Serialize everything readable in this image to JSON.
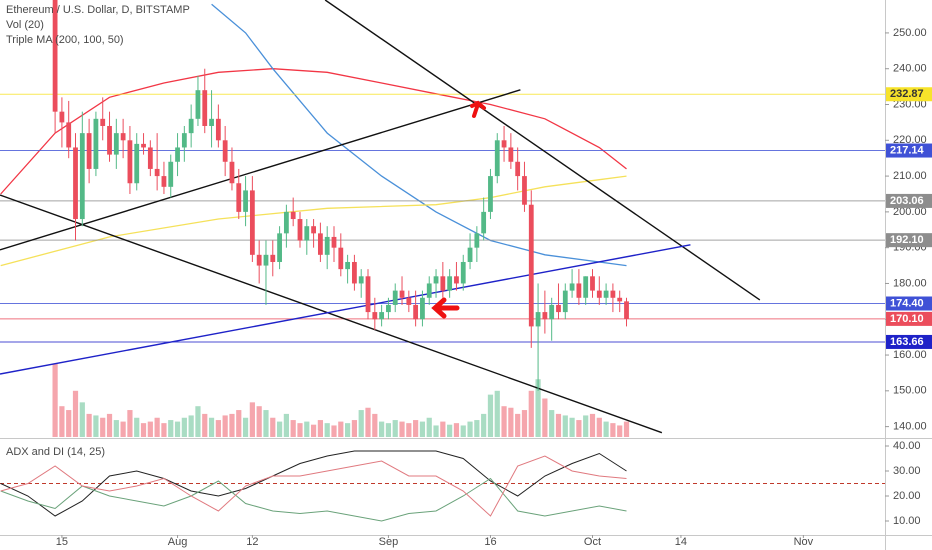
{
  "chart_data": {
    "type": "candlestick",
    "title": "Ethereum / U.S. Dollar, D, BITSTAMP",
    "indicator_labels": [
      "Vol (20)",
      "Triple MA (200, 100, 50)"
    ],
    "up_color": "#53b987",
    "down_color": "#eb4d5c",
    "grid": false,
    "xlim": [
      -8.1,
      122
    ],
    "xticks": [
      {
        "value": 1,
        "label": "15"
      },
      {
        "value": 18,
        "label": "Aug"
      },
      {
        "value": 29,
        "label": "12"
      },
      {
        "value": 49,
        "label": "Sep"
      },
      {
        "value": 64,
        "label": "16"
      },
      {
        "value": 79,
        "label": "Oct"
      },
      {
        "value": 92,
        "label": "14"
      },
      {
        "value": 110,
        "label": "Nov"
      }
    ],
    "ylim": [
      137.1,
      259.2
    ],
    "yticks": [
      {
        "value": 250,
        "label": "250.00"
      },
      {
        "value": 240,
        "label": "240.00"
      },
      {
        "value": 230,
        "label": "230.00"
      },
      {
        "value": 220,
        "label": "220.00"
      },
      {
        "value": 210,
        "label": "210.00"
      },
      {
        "value": 200,
        "label": "200.00"
      },
      {
        "value": 190,
        "label": "190.00"
      },
      {
        "value": 180,
        "label": "180.00"
      },
      {
        "value": 170,
        "label": "170.00"
      },
      {
        "value": 160,
        "label": "160.00"
      },
      {
        "value": 150,
        "label": "150.00"
      },
      {
        "value": 140,
        "label": "140.00"
      }
    ],
    "ohlc": [
      [
        265,
        268,
        222,
        228
      ],
      [
        228,
        232,
        218,
        225
      ],
      [
        225,
        231,
        215,
        218
      ],
      [
        218,
        222,
        192,
        198
      ],
      [
        198,
        228,
        196,
        222
      ],
      [
        222,
        226,
        208,
        212
      ],
      [
        212,
        228,
        210,
        226
      ],
      [
        226,
        232,
        220,
        224
      ],
      [
        224,
        228,
        214,
        216
      ],
      [
        216,
        226,
        212,
        222
      ],
      [
        222,
        226,
        215,
        220
      ],
      [
        220,
        224,
        205,
        208
      ],
      [
        208,
        222,
        206,
        219
      ],
      [
        219,
        222,
        216,
        218
      ],
      [
        218,
        220,
        210,
        212
      ],
      [
        212,
        222,
        206,
        210
      ],
      [
        210,
        214,
        205,
        207
      ],
      [
        207,
        216,
        204,
        214
      ],
      [
        214,
        222,
        210,
        218
      ],
      [
        218,
        224,
        214,
        222
      ],
      [
        222,
        230,
        218,
        226
      ],
      [
        226,
        238,
        224,
        234
      ],
      [
        234,
        240,
        222,
        224
      ],
      [
        224,
        234,
        218,
        226
      ],
      [
        226,
        230,
        218,
        220
      ],
      [
        220,
        224,
        210,
        214
      ],
      [
        214,
        218,
        206,
        208
      ],
      [
        208,
        212,
        198,
        200
      ],
      [
        200,
        210,
        196,
        206
      ],
      [
        206,
        210,
        186,
        188
      ],
      [
        188,
        192,
        180,
        185
      ],
      [
        185,
        192,
        174,
        188
      ],
      [
        188,
        192,
        182,
        186
      ],
      [
        186,
        196,
        184,
        194
      ],
      [
        194,
        202,
        190,
        200
      ],
      [
        200,
        204,
        196,
        198
      ],
      [
        198,
        200,
        190,
        192
      ],
      [
        192,
        198,
        188,
        196
      ],
      [
        196,
        198,
        190,
        194
      ],
      [
        194,
        197,
        186,
        188
      ],
      [
        188,
        196,
        184,
        193
      ],
      [
        193,
        196,
        186,
        190
      ],
      [
        190,
        194,
        182,
        184
      ],
      [
        184,
        188,
        180,
        186
      ],
      [
        186,
        188,
        178,
        180
      ],
      [
        180,
        184,
        176,
        182
      ],
      [
        182,
        184,
        170,
        172
      ],
      [
        172,
        176,
        167,
        170
      ],
      [
        170,
        174,
        168,
        172
      ],
      [
        172,
        176,
        170,
        174
      ],
      [
        174,
        180,
        172,
        178
      ],
      [
        178,
        182,
        174,
        176
      ],
      [
        176,
        178,
        172,
        174
      ],
      [
        174,
        178,
        168,
        170
      ],
      [
        170,
        178,
        168,
        176
      ],
      [
        176,
        182,
        174,
        180
      ],
      [
        180,
        184,
        176,
        182
      ],
      [
        182,
        186,
        176,
        178
      ],
      [
        178,
        184,
        176,
        182
      ],
      [
        182,
        186,
        178,
        180
      ],
      [
        180,
        188,
        178,
        186
      ],
      [
        186,
        194,
        184,
        190
      ],
      [
        190,
        196,
        186,
        194
      ],
      [
        194,
        204,
        192,
        200
      ],
      [
        200,
        212,
        198,
        210
      ],
      [
        210,
        222,
        208,
        220
      ],
      [
        220,
        224,
        214,
        218
      ],
      [
        218,
        222,
        212,
        214
      ],
      [
        214,
        218,
        206,
        210
      ],
      [
        210,
        214,
        200,
        202
      ],
      [
        202,
        206,
        162,
        168
      ],
      [
        168,
        180,
        150,
        172
      ],
      [
        172,
        178,
        166,
        170
      ],
      [
        170,
        176,
        164,
        174
      ],
      [
        174,
        180,
        170,
        172
      ],
      [
        172,
        180,
        170,
        178
      ],
      [
        178,
        184,
        176,
        180
      ],
      [
        180,
        184,
        174,
        176
      ],
      [
        176,
        182,
        174,
        182
      ],
      [
        182,
        184,
        176,
        178
      ],
      [
        178,
        182,
        174,
        176
      ],
      [
        176,
        180,
        174,
        178
      ],
      [
        178,
        180,
        172,
        176
      ],
      [
        176,
        178,
        172,
        175
      ],
      [
        175,
        176,
        168,
        170.1
      ]
    ],
    "volume": {
      "ylim": [
        0,
        100
      ],
      "values": [
        95,
        40,
        35,
        60,
        45,
        30,
        28,
        25,
        30,
        22,
        20,
        35,
        25,
        18,
        20,
        25,
        18,
        22,
        20,
        25,
        28,
        40,
        30,
        25,
        22,
        28,
        30,
        35,
        25,
        45,
        40,
        35,
        25,
        20,
        30,
        22,
        18,
        20,
        16,
        22,
        18,
        15,
        20,
        18,
        22,
        35,
        38,
        30,
        20,
        18,
        22,
        20,
        18,
        22,
        20,
        25,
        15,
        20,
        16,
        18,
        15,
        20,
        22,
        30,
        55,
        60,
        40,
        38,
        30,
        35,
        60,
        75,
        50,
        35,
        30,
        28,
        25,
        22,
        28,
        30,
        25,
        20,
        18,
        15,
        20
      ]
    },
    "moving_averages": [
      {
        "color": "#f23645",
        "x": [
          -8,
          0,
          8,
          16,
          24,
          32,
          40,
          48,
          56,
          64,
          72,
          80,
          84
        ],
        "values": [
          205,
          222,
          232,
          236,
          239,
          240,
          239,
          236,
          233,
          230,
          226,
          218,
          212
        ]
      },
      {
        "color": "#4a90d9",
        "x": [
          23,
          28,
          32,
          40,
          48,
          56,
          64,
          72,
          80,
          84
        ],
        "values": [
          258,
          250,
          240,
          222,
          210,
          200,
          192,
          188,
          186,
          185
        ]
      },
      {
        "color": "#f5e15a",
        "x": [
          -8,
          8,
          24,
          40,
          56,
          64,
          72,
          80,
          84
        ],
        "values": [
          185,
          193,
          198,
          201,
          202,
          204,
          207,
          209,
          210
        ]
      }
    ],
    "trendlines": [
      {
        "color": "#111111",
        "points": [
          [
            39.7,
            259.2
          ],
          [
            103.6,
            175.4
          ]
        ]
      },
      {
        "color": "#111111",
        "points": [
          [
            -8.1,
            204.7
          ],
          [
            89.2,
            138.3
          ]
        ]
      },
      {
        "color": "#111111",
        "points": [
          [
            -8.1,
            189.4
          ],
          [
            68.4,
            234.1
          ]
        ]
      },
      {
        "color": "#1e22c8",
        "points": [
          [
            -8.1,
            154.7
          ],
          [
            93.4,
            190.8
          ]
        ]
      }
    ],
    "price_lines": [
      {
        "value": 232.87,
        "color": "#f7e32a",
        "text_color": "#333333"
      },
      {
        "value": 217.14,
        "color": "#3f51d6",
        "text_color": "#ffffff"
      },
      {
        "value": 203.06,
        "color": "#8d8d8d",
        "text_color": "#ffffff"
      },
      {
        "value": 192.1,
        "label": "192.10",
        "color": "#8d8d8d",
        "text_color": "#ffffff"
      },
      {
        "value": 174.4,
        "label": "174.40",
        "color": "#3f51d6",
        "text_color": "#ffffff"
      },
      {
        "value": 170.1,
        "label": "170.10",
        "color": "#eb4d5c",
        "text_color": "#ffffff"
      },
      {
        "value": 163.66,
        "color": "#1e22c8",
        "text_color": "#ffffff"
      }
    ],
    "adx": {
      "title": "ADX and DI (14, 25)",
      "ylim": [
        4.4,
        42.4
      ],
      "yticks": [
        {
          "value": 40,
          "label": "40.00"
        },
        {
          "value": 30,
          "label": "30.00"
        },
        {
          "value": 20,
          "label": "20.00"
        },
        {
          "value": 10,
          "label": "10.00"
        }
      ],
      "level": 25,
      "x": [
        -8,
        -4,
        0,
        4,
        8,
        12,
        16,
        20,
        24,
        28,
        32,
        36,
        40,
        44,
        48,
        52,
        56,
        60,
        64,
        68,
        72,
        76,
        80,
        84
      ],
      "series": [
        {
          "color": "#222222",
          "values": [
            25,
            20,
            12,
            18,
            28,
            30,
            27,
            22,
            20,
            23,
            28,
            33,
            36,
            38,
            38,
            38,
            38,
            35,
            26,
            20,
            28,
            33,
            37,
            30
          ]
        },
        {
          "color": "#6aa27a",
          "values": [
            22,
            18,
            15,
            24,
            20,
            18,
            16,
            20,
            26,
            17,
            14,
            13,
            14,
            12,
            10,
            13,
            14,
            20,
            27,
            14,
            12,
            14,
            16,
            14
          ]
        },
        {
          "color": "#e0797f",
          "values": [
            22,
            25,
            32,
            24,
            22,
            24,
            27,
            20,
            14,
            24,
            28,
            28,
            30,
            32,
            34,
            28,
            28,
            22,
            12,
            32,
            36,
            30,
            28,
            27
          ]
        }
      ]
    }
  }
}
